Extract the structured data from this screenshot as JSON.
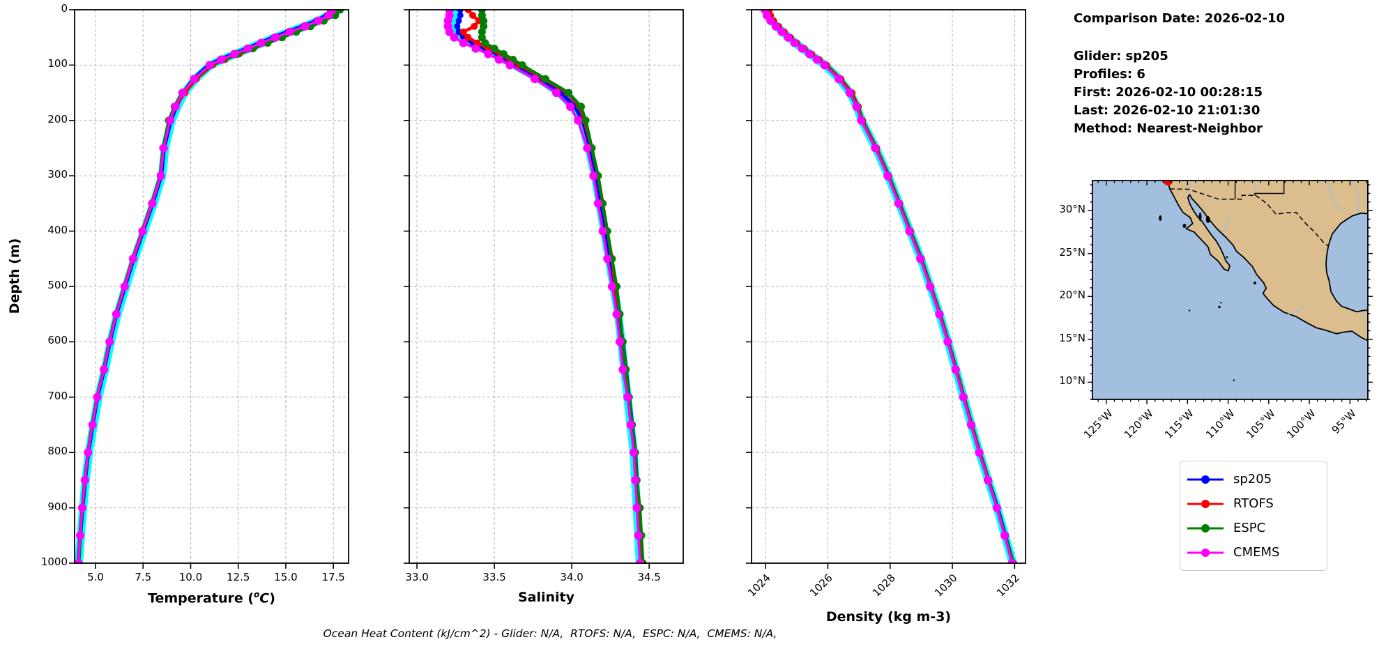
{
  "info": {
    "comparison_date": "Comparison Date: 2026-02-10",
    "lines": [
      "Glider: sp205",
      "Profiles: 6",
      "First: 2026-02-10 00:28:15",
      "Last: 2026-02-10 21:01:30",
      "Method: Nearest-Neighbor"
    ]
  },
  "caption": "Ocean Heat Content (kJ/cm^2) - Glider: N/A,  RTOFS: N/A,  ESPC: N/A,  CMEMS: N/A,",
  "depth_axis": {
    "label": "Depth (m)"
  },
  "legend": {
    "items": [
      {
        "label": "sp205",
        "color": "#0000ff"
      },
      {
        "label": "RTOFS",
        "color": "#ff0000"
      },
      {
        "label": "ESPC",
        "color": "#008000"
      },
      {
        "label": "CMEMS",
        "color": "#ff00ff"
      }
    ]
  },
  "map": {
    "extent": {
      "west": 126.7,
      "east": 92.8,
      "north": 33.5,
      "south": 8.0
    },
    "lon_ticks": {
      "values": [
        125,
        120,
        115,
        110,
        105,
        100,
        95
      ],
      "labels": [
        "125°W",
        "120°W",
        "115°W",
        "110°W",
        "105°W",
        "100°W",
        "95°W"
      ]
    },
    "lat_ticks": {
      "values": [
        30,
        25,
        20,
        15,
        10
      ],
      "labels": [
        "30°N",
        "25°N",
        "20°N",
        "15°N",
        "10°N"
      ]
    },
    "glider_marker": {
      "lon": 117.4,
      "lat": 33.45,
      "color": "#ff0000"
    },
    "land_color": "#dcbd8e",
    "ocean_color": "#a3bfe0",
    "river_color": "#9dc3e6"
  },
  "chart_data": [
    {
      "type": "line",
      "name": "temperature-profile",
      "xlabel_parts": {
        "pre": "Temperature (",
        "sup": "o",
        "it": "C",
        "post": ")"
      },
      "xlim": [
        3.9,
        18.3
      ],
      "ylim": [
        0,
        1000
      ],
      "xticks": {
        "values": [
          5.0,
          7.5,
          10.0,
          12.5,
          15.0,
          17.5
        ],
        "labels": [
          "5.0",
          "7.5",
          "10.0",
          "12.5",
          "15.0",
          "17.5"
        ]
      },
      "yticks": {
        "values": [
          0,
          100,
          200,
          300,
          400,
          500,
          600,
          700,
          800,
          900,
          1000
        ],
        "labels": [
          "0",
          "100",
          "200",
          "300",
          "400",
          "500",
          "600",
          "700",
          "800",
          "900",
          "1000"
        ]
      },
      "depths_m": [
        0,
        10,
        20,
        30,
        40,
        50,
        60,
        70,
        80,
        90,
        100,
        125,
        150,
        175,
        200,
        250,
        300,
        350,
        400,
        450,
        500,
        550,
        600,
        650,
        700,
        750,
        800,
        850,
        900,
        950,
        1000
      ],
      "series": [
        {
          "name": "sp205-raw",
          "color": "#00ffff",
          "line_width": 12,
          "marker_radius": 0,
          "in_legend": false,
          "values": [
            17.5,
            17.25,
            16.7,
            16.0,
            15.2,
            14.45,
            13.75,
            13.05,
            12.35,
            11.65,
            11.05,
            10.25,
            9.68,
            9.3,
            9.0,
            8.65,
            8.5,
            8.05,
            7.55,
            7.05,
            6.6,
            6.15,
            5.8,
            5.5,
            5.15,
            4.9,
            4.65,
            4.48,
            4.35,
            4.23,
            4.12
          ]
        },
        {
          "name": "sp205",
          "color": "#0000ff",
          "line_width": 5.5,
          "marker_radius": 4.5,
          "in_legend": true,
          "values": [
            17.4,
            17.15,
            16.6,
            15.9,
            15.1,
            14.35,
            13.65,
            12.95,
            12.25,
            11.55,
            10.95,
            10.15,
            9.6,
            9.25,
            8.95,
            8.6,
            8.45,
            8.0,
            7.5,
            7.0,
            6.55,
            6.1,
            5.75,
            5.45,
            5.1,
            4.85,
            4.62,
            4.45,
            4.32,
            4.2,
            4.1
          ]
        },
        {
          "name": "RTOFS",
          "color": "#ff0000",
          "line_width": 4.5,
          "marker_radius": 5,
          "in_legend": true,
          "values": [
            17.35,
            17.2,
            16.85,
            16.2,
            15.5,
            14.75,
            14.0,
            13.3,
            12.55,
            11.8,
            11.15,
            10.3,
            9.7,
            9.2,
            8.9,
            8.55,
            8.4,
            7.95,
            7.45,
            6.95,
            6.5,
            6.07,
            5.72,
            5.42,
            5.08,
            4.82,
            4.6,
            4.44,
            4.3,
            4.19,
            4.1
          ]
        },
        {
          "name": "ESPC",
          "color": "#008000",
          "line_width": 4.5,
          "marker_radius": 5.5,
          "in_legend": true,
          "values": [
            17.85,
            17.6,
            17.0,
            16.3,
            15.55,
            14.8,
            14.05,
            13.25,
            12.45,
            11.7,
            11.05,
            10.2,
            9.55,
            9.15,
            8.85,
            8.55,
            8.42,
            7.97,
            7.48,
            6.98,
            6.52,
            6.08,
            5.73,
            5.43,
            5.09,
            4.83,
            4.61,
            4.44,
            4.31,
            4.2,
            4.12
          ]
        },
        {
          "name": "CMEMS",
          "color": "#ff00ff",
          "line_width": 3.5,
          "marker_radius": 6,
          "in_legend": true,
          "values": [
            17.45,
            17.25,
            16.7,
            16.0,
            15.2,
            14.45,
            13.7,
            13.0,
            12.3,
            11.6,
            11.0,
            10.18,
            9.58,
            9.2,
            8.92,
            8.58,
            8.43,
            7.98,
            7.47,
            6.97,
            6.53,
            6.09,
            5.74,
            5.44,
            5.09,
            4.84,
            4.6,
            4.44,
            4.3,
            4.19,
            4.1
          ]
        }
      ]
    },
    {
      "type": "line",
      "name": "salinity-profile",
      "xlabel": "Salinity",
      "xlim": [
        32.95,
        34.72
      ],
      "ylim": [
        0,
        1000
      ],
      "xticks": {
        "values": [
          33.0,
          33.5,
          34.0,
          34.5
        ],
        "labels": [
          "33.0",
          "33.5",
          "34.0",
          "34.5"
        ]
      },
      "yticks": {
        "values": [
          0,
          100,
          200,
          300,
          400,
          500,
          600,
          700,
          800,
          900,
          1000
        ],
        "labels": [
          "0",
          "100",
          "200",
          "300",
          "400",
          "500",
          "600",
          "700",
          "800",
          "900",
          "1000"
        ]
      },
      "depths_m": [
        0,
        10,
        20,
        30,
        40,
        50,
        60,
        70,
        80,
        90,
        100,
        125,
        150,
        175,
        200,
        250,
        300,
        350,
        400,
        450,
        500,
        550,
        600,
        650,
        700,
        750,
        800,
        850,
        900,
        950,
        1000
      ],
      "series": [
        {
          "name": "sp205-raw",
          "color": "#00ffff",
          "line_width": 12,
          "marker_radius": 0,
          "in_legend": false,
          "values": [
            33.26,
            33.26,
            33.25,
            33.25,
            33.26,
            33.29,
            33.35,
            33.43,
            33.51,
            33.57,
            33.63,
            33.79,
            33.92,
            34.01,
            34.06,
            34.11,
            34.15,
            34.18,
            34.21,
            34.24,
            34.27,
            34.3,
            34.32,
            34.34,
            34.36,
            34.38,
            34.4,
            34.41,
            34.42,
            34.43,
            34.44
          ]
        },
        {
          "name": "sp205",
          "color": "#0000ff",
          "line_width": 5.5,
          "marker_radius": 4.5,
          "in_legend": true,
          "values": [
            33.28,
            33.28,
            33.27,
            33.26,
            33.27,
            33.3,
            33.36,
            33.44,
            33.52,
            33.58,
            33.64,
            33.8,
            33.93,
            34.02,
            34.07,
            34.12,
            34.16,
            34.19,
            34.22,
            34.25,
            34.28,
            34.3,
            34.33,
            34.35,
            34.37,
            34.39,
            34.41,
            34.42,
            34.43,
            34.44,
            34.45
          ]
        },
        {
          "name": "RTOFS",
          "color": "#ff0000",
          "line_width": 4.5,
          "marker_radius": 5,
          "in_legend": true,
          "values": [
            33.33,
            33.36,
            33.4,
            33.37,
            33.3,
            33.33,
            33.39,
            33.46,
            33.54,
            33.6,
            33.66,
            33.82,
            33.97,
            34.05,
            34.08,
            34.13,
            34.17,
            34.2,
            34.23,
            34.26,
            34.28,
            34.31,
            34.33,
            34.35,
            34.37,
            34.39,
            34.41,
            34.42,
            34.43,
            34.44,
            34.45
          ]
        },
        {
          "name": "ESPC",
          "color": "#008000",
          "line_width": 4.5,
          "marker_radius": 5.5,
          "in_legend": true,
          "values": [
            33.42,
            33.42,
            33.43,
            33.43,
            33.42,
            33.42,
            33.44,
            33.5,
            33.56,
            33.62,
            33.68,
            33.83,
            33.98,
            34.06,
            34.09,
            34.13,
            34.17,
            34.2,
            34.23,
            34.26,
            34.29,
            34.31,
            34.33,
            34.35,
            34.37,
            34.39,
            34.41,
            34.42,
            34.44,
            34.45,
            34.46
          ]
        },
        {
          "name": "CMEMS",
          "color": "#ff00ff",
          "line_width": 3.5,
          "marker_radius": 6,
          "in_legend": true,
          "values": [
            33.21,
            33.21,
            33.2,
            33.2,
            33.21,
            33.24,
            33.3,
            33.38,
            33.46,
            33.53,
            33.6,
            33.76,
            33.9,
            33.99,
            34.04,
            34.1,
            34.14,
            34.17,
            34.2,
            34.23,
            34.26,
            34.29,
            34.31,
            34.33,
            34.36,
            34.38,
            34.4,
            34.41,
            34.42,
            34.43,
            34.44
          ]
        }
      ]
    },
    {
      "type": "line",
      "name": "density-profile",
      "xlabel": "Density (kg m-3)",
      "rotated_xticks": 45,
      "xlim": [
        1023.55,
        1032.35
      ],
      "ylim": [
        0,
        1000
      ],
      "xticks": {
        "values": [
          1024,
          1026,
          1028,
          1030,
          1032
        ],
        "labels": [
          "1024",
          "1026",
          "1028",
          "1030",
          "1032"
        ]
      },
      "yticks": {
        "values": [
          0,
          100,
          200,
          300,
          400,
          500,
          600,
          700,
          800,
          900,
          1000
        ],
        "labels": [
          "0",
          "100",
          "200",
          "300",
          "400",
          "500",
          "600",
          "700",
          "800",
          "900",
          "1000"
        ]
      },
      "depths_m": [
        0,
        10,
        20,
        30,
        40,
        50,
        60,
        70,
        80,
        90,
        100,
        125,
        150,
        175,
        200,
        250,
        300,
        350,
        400,
        450,
        500,
        550,
        600,
        650,
        700,
        750,
        800,
        850,
        900,
        950,
        1000
      ],
      "series": [
        {
          "name": "sp205-raw",
          "color": "#00ffff",
          "line_width": 12,
          "marker_radius": 0,
          "in_legend": false,
          "values": [
            1024.02,
            1024.08,
            1024.2,
            1024.36,
            1024.55,
            1024.75,
            1024.96,
            1025.19,
            1025.43,
            1025.67,
            1025.91,
            1026.37,
            1026.71,
            1026.93,
            1027.09,
            1027.54,
            1027.94,
            1028.29,
            1028.64,
            1028.99,
            1029.29,
            1029.59,
            1029.86,
            1030.11,
            1030.36,
            1030.61,
            1030.87,
            1031.15,
            1031.44,
            1031.69,
            1031.94
          ]
        },
        {
          "name": "sp205",
          "color": "#0000ff",
          "line_width": 5.5,
          "marker_radius": 4.5,
          "in_legend": true,
          "values": [
            1024.05,
            1024.1,
            1024.22,
            1024.38,
            1024.56,
            1024.76,
            1024.97,
            1025.2,
            1025.44,
            1025.68,
            1025.92,
            1026.38,
            1026.72,
            1026.94,
            1027.1,
            1027.55,
            1027.95,
            1028.3,
            1028.65,
            1029.0,
            1029.3,
            1029.6,
            1029.87,
            1030.12,
            1030.37,
            1030.62,
            1030.88,
            1031.16,
            1031.45,
            1031.7,
            1031.95
          ]
        },
        {
          "name": "RTOFS",
          "color": "#ff0000",
          "line_width": 4.5,
          "marker_radius": 5,
          "in_legend": true,
          "values": [
            1024.12,
            1024.16,
            1024.26,
            1024.42,
            1024.6,
            1024.8,
            1025.0,
            1025.24,
            1025.48,
            1025.72,
            1025.96,
            1026.42,
            1026.78,
            1026.98,
            1027.12,
            1027.57,
            1027.96,
            1028.31,
            1028.66,
            1029.01,
            1029.31,
            1029.61,
            1029.88,
            1030.13,
            1030.38,
            1030.63,
            1030.89,
            1031.17,
            1031.44,
            1031.69,
            1031.93
          ]
        },
        {
          "name": "ESPC",
          "color": "#008000",
          "line_width": 4.5,
          "marker_radius": 5.5,
          "in_legend": true,
          "values": [
            1024.0,
            1024.06,
            1024.18,
            1024.35,
            1024.54,
            1024.74,
            1024.95,
            1025.19,
            1025.43,
            1025.67,
            1025.91,
            1026.37,
            1026.73,
            1026.95,
            1027.09,
            1027.54,
            1027.94,
            1028.29,
            1028.64,
            1028.99,
            1029.29,
            1029.59,
            1029.86,
            1030.11,
            1030.36,
            1030.61,
            1030.87,
            1031.15,
            1031.44,
            1031.7,
            1031.96
          ]
        },
        {
          "name": "CMEMS",
          "color": "#ff00ff",
          "line_width": 3.5,
          "marker_radius": 6,
          "in_legend": true,
          "values": [
            1023.98,
            1024.04,
            1024.16,
            1024.33,
            1024.52,
            1024.72,
            1024.93,
            1025.17,
            1025.41,
            1025.65,
            1025.89,
            1026.35,
            1026.7,
            1026.92,
            1027.07,
            1027.52,
            1027.92,
            1028.27,
            1028.62,
            1028.97,
            1029.28,
            1029.58,
            1029.85,
            1030.1,
            1030.35,
            1030.6,
            1030.86,
            1031.14,
            1031.43,
            1031.68,
            1031.92
          ]
        }
      ]
    }
  ]
}
